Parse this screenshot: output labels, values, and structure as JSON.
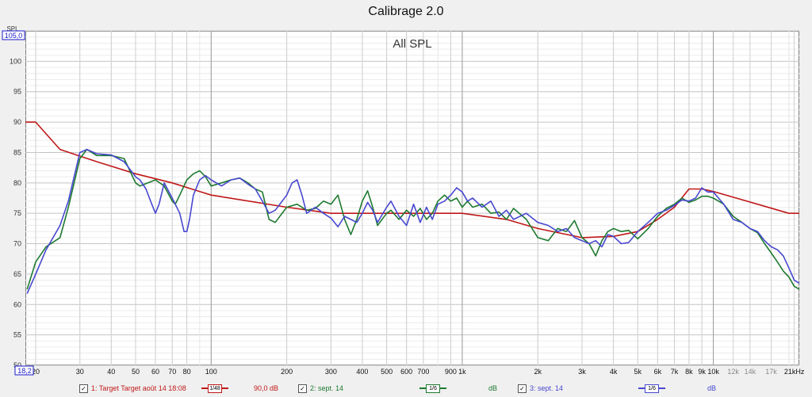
{
  "window_title": "Calibrage 2.0",
  "chart_data": {
    "type": "line",
    "title": "All SPL",
    "ylabel": "SPL",
    "ylim": [
      50,
      105
    ],
    "y_scale_label": "105,0",
    "x_scale_label": "18,2",
    "xscale": "log",
    "xlim": [
      18.2,
      22000
    ],
    "grid": true,
    "y_ticks": [
      50,
      55,
      60,
      65,
      70,
      75,
      80,
      85,
      90,
      95,
      100
    ],
    "x_ticks": [
      {
        "value": 20,
        "label": "20",
        "major": false
      },
      {
        "value": 30,
        "label": "30",
        "major": false
      },
      {
        "value": 40,
        "label": "40",
        "major": false
      },
      {
        "value": 50,
        "label": "50",
        "major": false
      },
      {
        "value": 60,
        "label": "60",
        "major": false
      },
      {
        "value": 70,
        "label": "70",
        "major": false
      },
      {
        "value": 80,
        "label": "80",
        "major": false
      },
      {
        "value": 100,
        "label": "100",
        "major": true
      },
      {
        "value": 200,
        "label": "200",
        "major": false
      },
      {
        "value": 300,
        "label": "300",
        "major": false
      },
      {
        "value": 400,
        "label": "400",
        "major": false
      },
      {
        "value": 500,
        "label": "500",
        "major": false
      },
      {
        "value": 600,
        "label": "600",
        "major": false
      },
      {
        "value": 700,
        "label": "700",
        "major": false
      },
      {
        "value": 900,
        "label": "900",
        "major": false
      },
      {
        "value": 1000,
        "label": "1k",
        "major": true
      },
      {
        "value": 2000,
        "label": "2k",
        "major": false
      },
      {
        "value": 3000,
        "label": "3k",
        "major": false
      },
      {
        "value": 4000,
        "label": "4k",
        "major": false
      },
      {
        "value": 5000,
        "label": "5k",
        "major": false
      },
      {
        "value": 6000,
        "label": "6k",
        "major": false
      },
      {
        "value": 7000,
        "label": "7k",
        "major": false
      },
      {
        "value": 8000,
        "label": "8k",
        "major": false
      },
      {
        "value": 9000,
        "label": "9k",
        "major": false
      },
      {
        "value": 10000,
        "label": "10k",
        "major": true
      },
      {
        "value": 12000,
        "label": "12k",
        "major": false,
        "light": true
      },
      {
        "value": 14000,
        "label": "14k",
        "major": false,
        "light": true
      },
      {
        "value": 17000,
        "label": "17k",
        "major": false,
        "light": true
      },
      {
        "value": 21000,
        "label": "21kHz",
        "major": false
      }
    ],
    "series": [
      {
        "name": "1: Target Target août 14 18:08",
        "color": "#c01818",
        "points": [
          [
            18.2,
            90
          ],
          [
            20,
            90
          ],
          [
            25,
            85.5
          ],
          [
            35,
            83.5
          ],
          [
            50,
            81.5
          ],
          [
            70,
            80
          ],
          [
            100,
            78
          ],
          [
            200,
            76
          ],
          [
            300,
            75
          ],
          [
            500,
            75
          ],
          [
            1000,
            75
          ],
          [
            1500,
            74
          ],
          [
            2000,
            72.5
          ],
          [
            3000,
            71
          ],
          [
            4000,
            71.2
          ],
          [
            5000,
            72
          ],
          [
            6000,
            74
          ],
          [
            7000,
            76
          ],
          [
            8000,
            79
          ],
          [
            9000,
            79
          ],
          [
            10000,
            78.6
          ],
          [
            15000,
            76.5
          ],
          [
            20000,
            75
          ],
          [
            22000,
            75
          ]
        ]
      },
      {
        "name": "2: sept. 14",
        "color": "#1e7a30",
        "points": [
          [
            18.5,
            62.5
          ],
          [
            20,
            67
          ],
          [
            22,
            69.5
          ],
          [
            25,
            71
          ],
          [
            27,
            76
          ],
          [
            30,
            84
          ],
          [
            32,
            85.5
          ],
          [
            35,
            84.5
          ],
          [
            40,
            84.5
          ],
          [
            45,
            84
          ],
          [
            50,
            80
          ],
          [
            52,
            79.5
          ],
          [
            60,
            80.5
          ],
          [
            65,
            79.5
          ],
          [
            70,
            77
          ],
          [
            72,
            76.5
          ],
          [
            75,
            78
          ],
          [
            80,
            80.5
          ],
          [
            85,
            81.5
          ],
          [
            90,
            82
          ],
          [
            95,
            81
          ],
          [
            100,
            79.5
          ],
          [
            110,
            80
          ],
          [
            120,
            80.5
          ],
          [
            130,
            80.8
          ],
          [
            140,
            80
          ],
          [
            150,
            79
          ],
          [
            160,
            78.5
          ],
          [
            170,
            74
          ],
          [
            180,
            73.5
          ],
          [
            200,
            76
          ],
          [
            220,
            76.5
          ],
          [
            240,
            75.5
          ],
          [
            260,
            75.8
          ],
          [
            280,
            77
          ],
          [
            300,
            76.5
          ],
          [
            320,
            78
          ],
          [
            340,
            74
          ],
          [
            360,
            71.5
          ],
          [
            380,
            74
          ],
          [
            400,
            77
          ],
          [
            420,
            78.7
          ],
          [
            440,
            76
          ],
          [
            460,
            73
          ],
          [
            500,
            75
          ],
          [
            520,
            75.5
          ],
          [
            560,
            74
          ],
          [
            600,
            75.5
          ],
          [
            640,
            74.5
          ],
          [
            680,
            75.8
          ],
          [
            720,
            74
          ],
          [
            760,
            75
          ],
          [
            800,
            77
          ],
          [
            850,
            78
          ],
          [
            900,
            77
          ],
          [
            950,
            77.5
          ],
          [
            1000,
            76
          ],
          [
            1050,
            77
          ],
          [
            1100,
            76
          ],
          [
            1200,
            76.5
          ],
          [
            1300,
            75
          ],
          [
            1400,
            75.2
          ],
          [
            1500,
            74
          ],
          [
            1600,
            75.8
          ],
          [
            1800,
            74
          ],
          [
            2000,
            71
          ],
          [
            2200,
            70.5
          ],
          [
            2400,
            72.5
          ],
          [
            2600,
            72
          ],
          [
            2800,
            73.8
          ],
          [
            3000,
            71
          ],
          [
            3200,
            70
          ],
          [
            3400,
            68
          ],
          [
            3600,
            70.5
          ],
          [
            3800,
            72
          ],
          [
            4000,
            72.5
          ],
          [
            4300,
            72
          ],
          [
            4600,
            72.2
          ],
          [
            5000,
            70.8
          ],
          [
            5500,
            72.5
          ],
          [
            6000,
            74.5
          ],
          [
            6500,
            75.8
          ],
          [
            7000,
            76.5
          ],
          [
            7500,
            77.5
          ],
          [
            8000,
            76.8
          ],
          [
            8500,
            77.2
          ],
          [
            9000,
            77.8
          ],
          [
            9500,
            77.8
          ],
          [
            10000,
            77.5
          ],
          [
            11000,
            76.5
          ],
          [
            12000,
            74.5
          ],
          [
            13000,
            73.5
          ],
          [
            14000,
            72.5
          ],
          [
            15000,
            71.8
          ],
          [
            16000,
            70
          ],
          [
            17000,
            68.5
          ],
          [
            18000,
            67
          ],
          [
            19000,
            65.5
          ],
          [
            20000,
            64.5
          ],
          [
            21000,
            63
          ],
          [
            22000,
            62.5
          ]
        ]
      },
      {
        "name": "3: sept. 14",
        "color": "#4848d0",
        "points": [
          [
            18.5,
            61.8
          ],
          [
            20,
            65
          ],
          [
            22,
            69
          ],
          [
            25,
            73
          ],
          [
            27,
            77
          ],
          [
            30,
            85
          ],
          [
            32,
            85.5
          ],
          [
            35,
            84.8
          ],
          [
            40,
            84.6
          ],
          [
            45,
            83.5
          ],
          [
            50,
            81
          ],
          [
            52,
            80.5
          ],
          [
            55,
            79
          ],
          [
            58,
            76.5
          ],
          [
            60,
            75
          ],
          [
            62,
            76.5
          ],
          [
            65,
            80
          ],
          [
            70,
            77.5
          ],
          [
            75,
            75
          ],
          [
            78,
            72
          ],
          [
            80,
            72
          ],
          [
            82,
            74
          ],
          [
            85,
            78
          ],
          [
            90,
            80.5
          ],
          [
            95,
            81.2
          ],
          [
            100,
            80.5
          ],
          [
            110,
            79.5
          ],
          [
            120,
            80.5
          ],
          [
            130,
            80.8
          ],
          [
            140,
            79.8
          ],
          [
            150,
            79
          ],
          [
            160,
            77
          ],
          [
            170,
            75
          ],
          [
            180,
            75.5
          ],
          [
            200,
            78
          ],
          [
            210,
            80
          ],
          [
            220,
            80.5
          ],
          [
            230,
            78
          ],
          [
            240,
            75
          ],
          [
            260,
            76
          ],
          [
            280,
            75
          ],
          [
            300,
            74.2
          ],
          [
            320,
            72.8
          ],
          [
            340,
            74.5
          ],
          [
            360,
            74
          ],
          [
            380,
            73.5
          ],
          [
            400,
            75
          ],
          [
            420,
            76.8
          ],
          [
            440,
            75.5
          ],
          [
            460,
            73.5
          ],
          [
            500,
            76
          ],
          [
            520,
            77
          ],
          [
            560,
            74.5
          ],
          [
            600,
            73
          ],
          [
            640,
            76.5
          ],
          [
            680,
            73.5
          ],
          [
            720,
            76
          ],
          [
            760,
            74
          ],
          [
            800,
            76.5
          ],
          [
            850,
            77
          ],
          [
            900,
            78
          ],
          [
            950,
            79.2
          ],
          [
            1000,
            78.5
          ],
          [
            1050,
            77
          ],
          [
            1100,
            77.5
          ],
          [
            1200,
            76
          ],
          [
            1300,
            77
          ],
          [
            1400,
            74.5
          ],
          [
            1500,
            75.5
          ],
          [
            1600,
            74
          ],
          [
            1800,
            75
          ],
          [
            2000,
            73.5
          ],
          [
            2200,
            73
          ],
          [
            2400,
            72
          ],
          [
            2600,
            72.5
          ],
          [
            2800,
            71
          ],
          [
            3000,
            70.5
          ],
          [
            3200,
            70
          ],
          [
            3400,
            70.5
          ],
          [
            3600,
            69.5
          ],
          [
            3800,
            71.5
          ],
          [
            4000,
            71.2
          ],
          [
            4300,
            70
          ],
          [
            4600,
            70.2
          ],
          [
            5000,
            72
          ],
          [
            5500,
            73.5
          ],
          [
            6000,
            75
          ],
          [
            6500,
            75.5
          ],
          [
            7000,
            76.3
          ],
          [
            7500,
            77.2
          ],
          [
            8000,
            77
          ],
          [
            8500,
            77.5
          ],
          [
            9000,
            79.2
          ],
          [
            9500,
            78.5
          ],
          [
            10000,
            78.5
          ],
          [
            11000,
            76.5
          ],
          [
            12000,
            74
          ],
          [
            13000,
            73.5
          ],
          [
            14000,
            72.5
          ],
          [
            15000,
            72
          ],
          [
            16000,
            70.5
          ],
          [
            17000,
            69.5
          ],
          [
            18000,
            69
          ],
          [
            19000,
            68
          ],
          [
            20000,
            66
          ],
          [
            21000,
            64
          ],
          [
            22000,
            63.5
          ]
        ]
      }
    ]
  },
  "legend": [
    {
      "checkbox": "✓",
      "label": "1: Target Target août 14 18:08",
      "smoothing": "1/48",
      "value": "90,0 dB",
      "color": "#c01818"
    },
    {
      "checkbox": "✓",
      "label": "2: sept. 14",
      "smoothing": "1/6",
      "value": "dB",
      "color": "#1e7a30"
    },
    {
      "checkbox": "✓",
      "label": "3: sept. 14",
      "smoothing": "1/6",
      "value": "dB",
      "color": "#4848d0"
    }
  ]
}
